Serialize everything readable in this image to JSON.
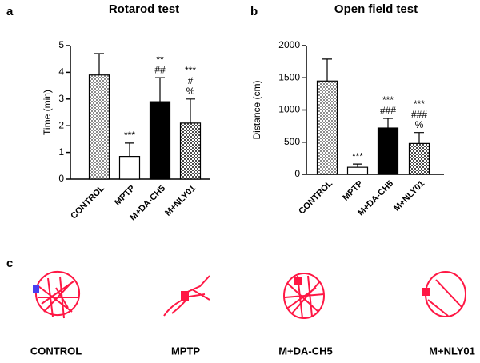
{
  "chart_data": [
    {
      "type": "bar",
      "panel_label": "a",
      "title": "Rotarod test",
      "y_label": "Time (min)",
      "categories": [
        "CONTROL",
        "MPTP",
        "M+DA-CH5",
        "M+NLY01"
      ],
      "values": [
        3.9,
        0.85,
        2.9,
        2.1
      ],
      "errors": [
        0.8,
        0.5,
        0.9,
        0.9
      ],
      "colors": [
        "#8c8c8c",
        "#ffffff",
        "#000000",
        "#4a4a4a"
      ],
      "patterns": [
        true,
        false,
        false,
        true
      ],
      "annotations": [
        [],
        [
          "***"
        ],
        [
          "**",
          "##"
        ],
        [
          "***",
          "#",
          "%"
        ]
      ],
      "ylim": [
        0,
        5
      ],
      "yticks": [
        0,
        1,
        2,
        3,
        4,
        5
      ],
      "grid": false
    },
    {
      "type": "bar",
      "panel_label": "b",
      "title": "Open field test",
      "y_label": "Distance (cm)",
      "categories": [
        "CONTROL",
        "MPTP",
        "M+DA-CH5",
        "M+NLY01"
      ],
      "values": [
        1450,
        110,
        720,
        480
      ],
      "errors": [
        340,
        50,
        150,
        170
      ],
      "colors": [
        "#8c8c8c",
        "#ffffff",
        "#000000",
        "#4a4a4a"
      ],
      "patterns": [
        true,
        false,
        false,
        true
      ],
      "annotations": [
        [],
        [
          "***"
        ],
        [
          "***",
          "###"
        ],
        [
          "***",
          "###",
          "%"
        ]
      ],
      "ylim": [
        0,
        2000
      ],
      "yticks": [
        0,
        500,
        1000,
        1500,
        2000
      ],
      "grid": false
    }
  ],
  "panel_c": {
    "panel_label": "c",
    "labels": [
      "CONTROL",
      "MPTP",
      "M+DA-CH5",
      "M+NLY01"
    ]
  }
}
